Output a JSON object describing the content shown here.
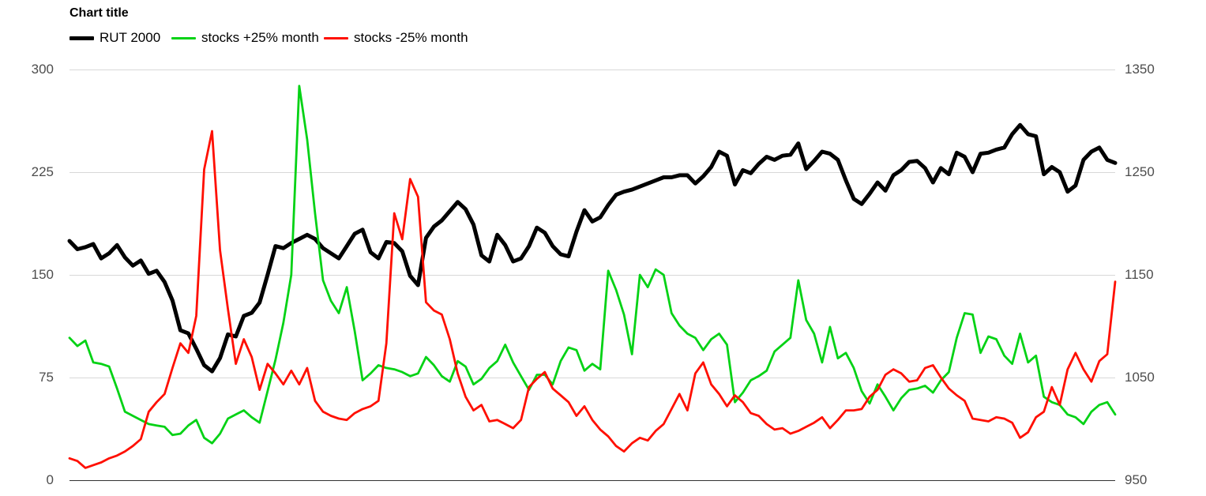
{
  "chart": {
    "title": "Chart title",
    "legend": [
      {
        "label": "RUT 2000",
        "color": "#000000",
        "swatch_thickness": 5
      },
      {
        "label": "stocks +25% month",
        "color": "#04d215",
        "swatch_thickness": 3
      },
      {
        "label": "stocks -25% month",
        "color": "#ff0f00",
        "swatch_thickness": 3
      }
    ],
    "axes": {
      "left": {
        "ticks": [
          "300",
          "225",
          "150",
          "75",
          "0"
        ]
      },
      "right": {
        "ticks": [
          "1350",
          "1250",
          "1150",
          "1050",
          "950"
        ]
      }
    }
  },
  "chart_data": {
    "type": "line",
    "title": "Chart title",
    "x": "index 0-132, evenly spaced samples (no x-axis labels shown)",
    "grid": true,
    "legend_position": "top-left",
    "left_ylabel": "",
    "right_ylabel": "",
    "left_ylim": [
      0,
      300
    ],
    "right_ylim": [
      950,
      1350
    ],
    "left_tick_step": 75,
    "right_tick_step": 100,
    "series": [
      {
        "name": "RUT 2000",
        "axis": "right",
        "color": "#000000",
        "width": 5,
        "values": [
          1183,
          1175,
          1177,
          1180,
          1166,
          1171,
          1179,
          1167,
          1159,
          1164,
          1151,
          1154,
          1143,
          1125,
          1096,
          1093,
          1078,
          1062,
          1056,
          1069,
          1092,
          1090,
          1110,
          1113,
          1123,
          1150,
          1178,
          1176,
          1181,
          1185,
          1189,
          1185,
          1176,
          1171,
          1166,
          1178,
          1190,
          1194,
          1172,
          1166,
          1182,
          1181,
          1173,
          1149,
          1140,
          1186,
          1197,
          1203,
          1212,
          1221,
          1214,
          1199,
          1169,
          1163,
          1189,
          1179,
          1163,
          1166,
          1178,
          1196,
          1191,
          1178,
          1170,
          1168,
          1192,
          1213,
          1202,
          1206,
          1218,
          1228,
          1231,
          1233,
          1236,
          1239,
          1242,
          1245,
          1245,
          1247,
          1247,
          1239,
          1246,
          1255,
          1270,
          1266,
          1238,
          1252,
          1249,
          1258,
          1265,
          1262,
          1266,
          1267,
          1278,
          1253,
          1261,
          1270,
          1268,
          1262,
          1242,
          1224,
          1219,
          1229,
          1240,
          1232,
          1247,
          1252,
          1260,
          1261,
          1254,
          1240,
          1254,
          1248,
          1269,
          1265,
          1250,
          1268,
          1269,
          1272,
          1274,
          1287,
          1296,
          1287,
          1285,
          1248,
          1255,
          1250,
          1231,
          1237,
          1262,
          1270,
          1274,
          1262,
          1259
        ]
      },
      {
        "name": "stocks +25% month",
        "axis": "left",
        "color": "#04d215",
        "width": 2.8,
        "values": [
          104,
          98,
          102,
          86,
          85,
          83,
          67,
          50,
          47,
          44,
          41,
          40,
          39,
          33,
          34,
          40,
          44,
          31,
          27,
          34,
          45,
          48,
          51,
          46,
          42,
          65,
          88,
          115,
          150,
          288,
          249,
          195,
          146,
          131,
          122,
          141,
          109,
          73,
          78,
          84,
          82,
          81,
          79,
          76,
          78,
          90,
          84,
          76,
          72,
          87,
          83,
          70,
          74,
          82,
          87,
          99,
          86,
          76,
          66,
          77,
          77,
          70,
          87,
          97,
          95,
          80,
          85,
          81,
          153,
          139,
          121,
          92,
          150,
          141,
          154,
          150,
          122,
          113,
          107,
          104,
          95,
          103,
          107,
          99,
          57,
          64,
          73,
          76,
          80,
          94,
          99,
          104,
          146,
          117,
          107,
          86,
          112,
          89,
          93,
          82,
          65,
          56,
          70,
          61,
          51,
          60,
          66,
          67,
          69,
          64,
          73,
          79,
          104,
          122,
          121,
          93,
          105,
          103,
          91,
          85,
          107,
          86,
          91,
          61,
          57,
          55,
          48,
          46,
          41,
          50,
          55,
          57,
          48
        ]
      },
      {
        "name": "stocks -25% month",
        "axis": "left",
        "color": "#ff0f00",
        "width": 2.8,
        "values": [
          16,
          14,
          9,
          11,
          13,
          16,
          18,
          21,
          25,
          30,
          50,
          57,
          63,
          82,
          100,
          93,
          120,
          227,
          255,
          168,
          125,
          85,
          103,
          90,
          66,
          85,
          78,
          70,
          80,
          70,
          82,
          58,
          50,
          47,
          45,
          44,
          49,
          52,
          54,
          58,
          100,
          195,
          176,
          220,
          207,
          130,
          124,
          121,
          103,
          78,
          61,
          51,
          55,
          43,
          44,
          41,
          38,
          44,
          68,
          74,
          79,
          67,
          62,
          57,
          47,
          54,
          44,
          37,
          32,
          25,
          21,
          27,
          31,
          29,
          36,
          41,
          52,
          63,
          51,
          78,
          86,
          70,
          63,
          54,
          62,
          57,
          49,
          47,
          41,
          37,
          38,
          34,
          36,
          39,
          42,
          46,
          38,
          44,
          51,
          51,
          52,
          61,
          66,
          77,
          81,
          78,
          72,
          73,
          82,
          84,
          75,
          67,
          62,
          58,
          45,
          44,
          43,
          46,
          45,
          42,
          31,
          35,
          46,
          50,
          68,
          55,
          81,
          93,
          81,
          72,
          87,
          92,
          145
        ]
      }
    ]
  },
  "layout_colors": {
    "gridline": "#d8d8d8",
    "axis_line": "#333333",
    "tick_text": "#4d4d4d",
    "background": "#ffffff"
  }
}
